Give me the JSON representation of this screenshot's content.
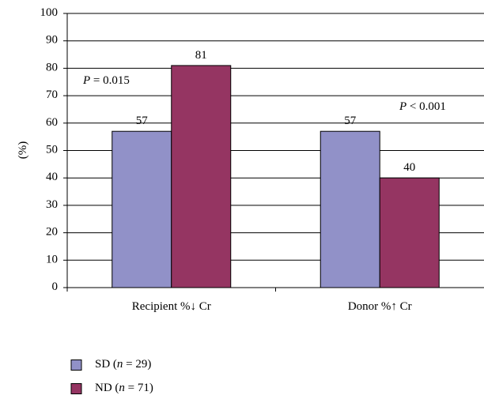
{
  "chart_data": {
    "type": "bar",
    "y_label": "(%)",
    "categories": [
      "Recipient %↓ Cr",
      "Donor %↑ Cr"
    ],
    "series": [
      {
        "name": "SD (n = 29)",
        "color": "#9191c8",
        "values": [
          57,
          57
        ]
      },
      {
        "name": "ND (n = 71)",
        "color": "#953562",
        "values": [
          81,
          40
        ]
      }
    ],
    "annotations": [
      "P = 0.015",
      "P < 0.001"
    ],
    "ylim": [
      0,
      100
    ],
    "yticks": [
      0,
      10,
      20,
      30,
      40,
      50,
      60,
      70,
      80,
      90,
      100
    ],
    "grid": true,
    "legend": "bottom-left"
  }
}
